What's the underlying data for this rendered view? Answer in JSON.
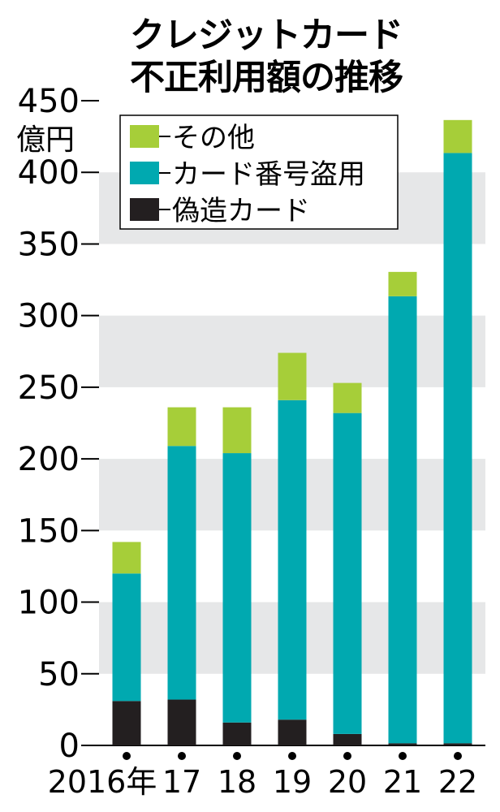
{
  "chart_data": {
    "type": "bar",
    "stacked": true,
    "title_lines": [
      "クレジットカード",
      "不正利用額の推移"
    ],
    "unit_label": "億円",
    "categories": [
      "2016年",
      "17",
      "18",
      "19",
      "20",
      "21",
      "22"
    ],
    "ylim": [
      0,
      450
    ],
    "yticks": [
      0,
      50,
      100,
      150,
      200,
      250,
      300,
      350,
      400,
      450
    ],
    "grid": "alternating-bands",
    "legend_position": "top-left",
    "series": [
      {
        "name": "偽造カード",
        "color": "#231f20",
        "values": [
          31,
          32,
          16,
          18,
          8,
          1.5,
          1.5
        ]
      },
      {
        "name": "カード番号盗用",
        "color": "#00a9b0",
        "values": [
          89,
          177,
          188,
          223,
          224,
          312,
          412
        ]
      },
      {
        "name": "その他",
        "color": "#a6ce39",
        "values": [
          22,
          27,
          32,
          33,
          21,
          17,
          23
        ]
      }
    ],
    "legend_order": [
      "その他",
      "カード番号盗用",
      "偽造カード"
    ]
  }
}
